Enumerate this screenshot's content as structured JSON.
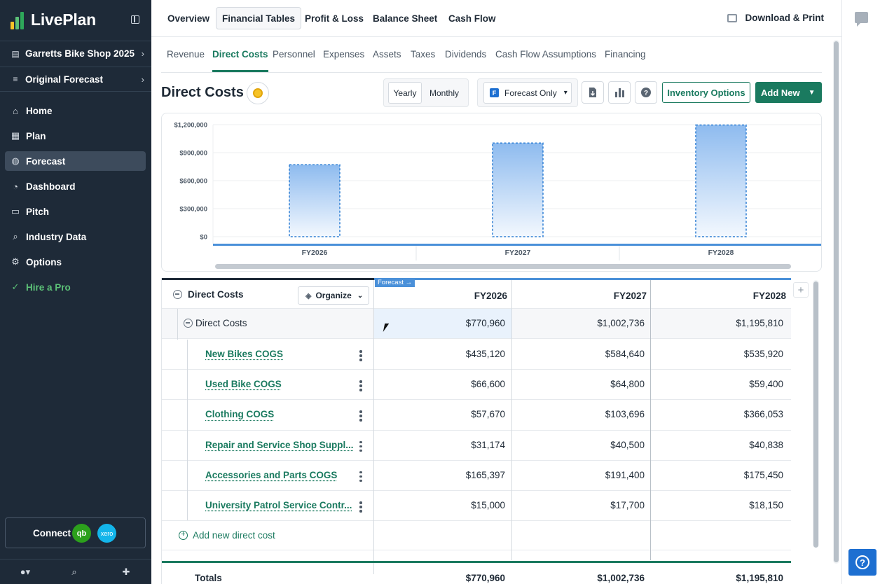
{
  "app": {
    "name": "LivePlan"
  },
  "sidebar": {
    "plan_name": "Garretts Bike Shop 2025",
    "forecast_name": "Original Forecast",
    "items": [
      {
        "label": "Home",
        "icon": "home-icon"
      },
      {
        "label": "Plan",
        "icon": "document-icon"
      },
      {
        "label": "Forecast",
        "icon": "piggy-bank-icon"
      },
      {
        "label": "Dashboard",
        "icon": "gauge-icon"
      },
      {
        "label": "Pitch",
        "icon": "presentation-icon"
      },
      {
        "label": "Industry Data",
        "icon": "magnify-icon"
      },
      {
        "label": "Options",
        "icon": "gear-icon"
      },
      {
        "label": "Hire a Pro",
        "icon": "check-circle-icon"
      }
    ],
    "active_item": "Forecast",
    "connect": {
      "label": "Connect",
      "qb": "qb",
      "xero": "xero"
    }
  },
  "topnav": {
    "tabs": [
      "Overview",
      "Financial Tables",
      "Profit & Loss",
      "Balance Sheet",
      "Cash Flow"
    ],
    "active": "Financial Tables",
    "download_label": "Download & Print"
  },
  "subtabs": {
    "items": [
      "Revenue",
      "Direct Costs",
      "Personnel",
      "Expenses",
      "Assets",
      "Taxes",
      "Dividends",
      "Cash Flow Assumptions",
      "Financing"
    ],
    "active": "Direct Costs"
  },
  "page": {
    "title": "Direct Costs",
    "view_toggle": {
      "yearly": "Yearly",
      "monthly": "Monthly",
      "active": "Yearly"
    },
    "forecast_filter": {
      "badge": "F",
      "label": "Forecast Only"
    },
    "inventory_button": "Inventory Options",
    "add_button": "Add New"
  },
  "chart_data": {
    "type": "bar",
    "categories": [
      "FY2026",
      "FY2027",
      "FY2028"
    ],
    "values": [
      770960,
      1002736,
      1195810
    ],
    "ylim": [
      0,
      1200000
    ],
    "ytick_labels": [
      "$1,200,000",
      "$900,000",
      "$600,000",
      "$300,000",
      "$0"
    ],
    "yticks": [
      1200000,
      900000,
      600000,
      300000,
      0
    ],
    "grid": true,
    "colors": {
      "bar_top": "#8ebbef",
      "bar_bottom": "#f3f8fe",
      "bar_border": "#2f7fd4",
      "axis": "#4a90d9"
    }
  },
  "table": {
    "header_title": "Direct Costs",
    "organize_label": "Organize",
    "forecast_tag": "Forecast →",
    "years": [
      "FY2026",
      "FY2027",
      "FY2028"
    ],
    "group": {
      "label": "Direct Costs",
      "values": [
        "$770,960",
        "$1,002,736",
        "$1,195,810"
      ]
    },
    "rows": [
      {
        "label": "New Bikes COGS",
        "values": [
          "$435,120",
          "$584,640",
          "$535,920"
        ]
      },
      {
        "label": "Used Bike COGS",
        "values": [
          "$66,600",
          "$64,800",
          "$59,400"
        ]
      },
      {
        "label": "Clothing COGS",
        "values": [
          "$57,670",
          "$103,696",
          "$366,053"
        ]
      },
      {
        "label": "Repair and Service Shop Suppl...",
        "values": [
          "$31,174",
          "$40,500",
          "$40,838"
        ]
      },
      {
        "label": "Accessories and Parts COGS",
        "values": [
          "$165,397",
          "$191,400",
          "$175,450"
        ]
      },
      {
        "label": "University Patrol Service Contr...",
        "values": [
          "$15,000",
          "$17,700",
          "$18,150"
        ]
      }
    ],
    "add_label": "Add new direct cost",
    "totals": {
      "label": "Totals",
      "values": [
        "$770,960",
        "$1,002,736",
        "$1,195,810"
      ]
    }
  },
  "colors": {
    "sidebar_bg": "#1e2a38",
    "accent_green": "#1a7a5f",
    "accent_blue": "#4a90d9"
  }
}
